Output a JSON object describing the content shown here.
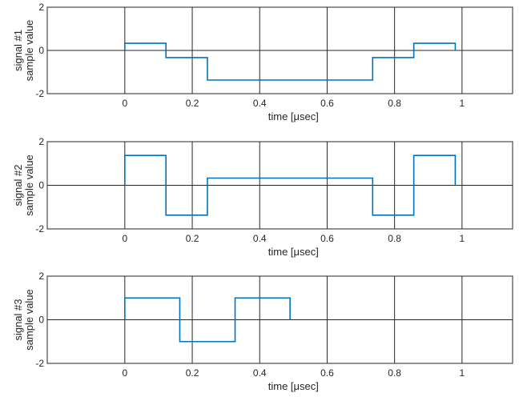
{
  "chart_data": [
    {
      "type": "line",
      "step": "post",
      "xlabel": "time [μsec]",
      "ylabel_lines": [
        "signal #1",
        "sample value"
      ],
      "xlim": [
        -0.23,
        1.15
      ],
      "ylim": [
        -2,
        2
      ],
      "xticks": [
        0,
        0.2,
        0.4,
        0.6,
        0.8,
        1
      ],
      "yticks": [
        -2,
        0,
        2
      ],
      "grid": true,
      "color": "#0072BD",
      "series": [
        {
          "x": [
            0,
            0.122,
            0.245,
            0.735,
            0.857,
            0.98
          ],
          "y": [
            0.33,
            -0.33,
            -1.37,
            -0.33,
            0.33,
            0
          ]
        }
      ]
    },
    {
      "type": "line",
      "step": "post",
      "xlabel": "time [μsec]",
      "ylabel_lines": [
        "signal #2",
        "sample value"
      ],
      "xlim": [
        -0.23,
        1.15
      ],
      "ylim": [
        -2,
        2
      ],
      "xticks": [
        0,
        0.2,
        0.4,
        0.6,
        0.8,
        1
      ],
      "yticks": [
        -2,
        0,
        2
      ],
      "grid": true,
      "color": "#0072BD",
      "series": [
        {
          "x": [
            0,
            0.122,
            0.245,
            0.735,
            0.857,
            0.98
          ],
          "y": [
            1.37,
            -1.37,
            0.33,
            -1.37,
            1.37,
            0
          ]
        }
      ]
    },
    {
      "type": "line",
      "step": "post",
      "xlabel": "time [μsec]",
      "ylabel_lines": [
        "signal #3",
        "sample value"
      ],
      "xlim": [
        -0.23,
        1.15
      ],
      "ylim": [
        -2,
        2
      ],
      "xticks": [
        0,
        0.2,
        0.4,
        0.6,
        0.8,
        1
      ],
      "yticks": [
        -2,
        0,
        2
      ],
      "grid": true,
      "color": "#0072BD",
      "series": [
        {
          "x": [
            0,
            0.163,
            0.327,
            0.49
          ],
          "y": [
            1,
            -1,
            1,
            0
          ]
        }
      ]
    }
  ]
}
